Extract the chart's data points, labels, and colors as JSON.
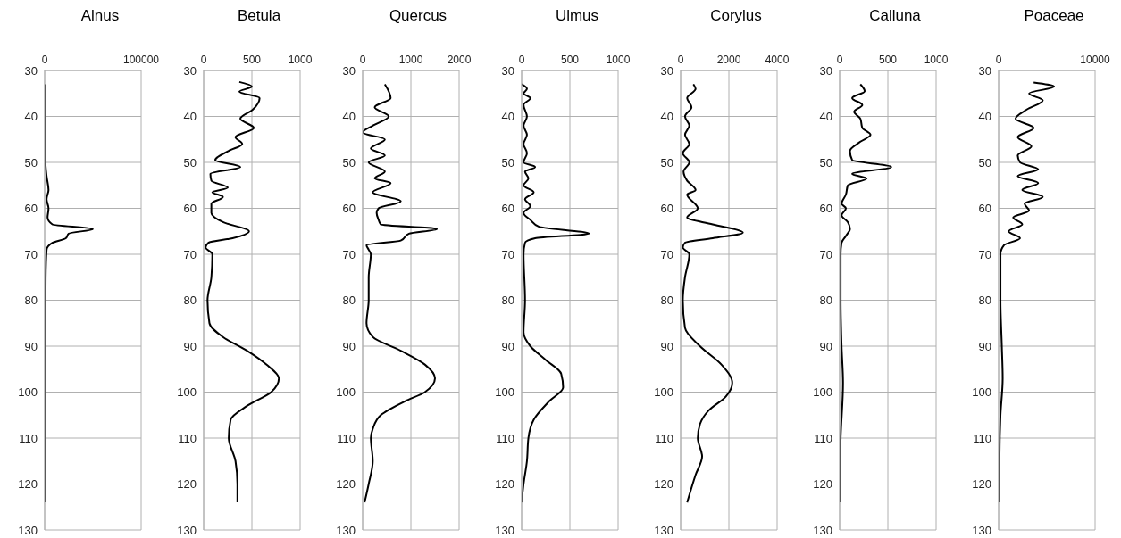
{
  "chart_data": [
    {
      "type": "line",
      "title": "Alnus",
      "color": "#000000",
      "xlim": [
        0,
        100000
      ],
      "xticks": [
        0,
        100000
      ],
      "ylim": [
        130,
        30
      ],
      "yticks": [
        30,
        40,
        50,
        60,
        70,
        80,
        90,
        100,
        110,
        120,
        130
      ],
      "grid": true,
      "x": [
        0,
        500,
        800,
        2000,
        4000,
        2000,
        4000,
        3000,
        8000,
        50000,
        25000,
        22000,
        8000,
        2000,
        1000,
        500,
        300,
        0
      ],
      "values": [
        33,
        40,
        50,
        53,
        56,
        58,
        60,
        62,
        63.5,
        64.5,
        65.5,
        66.5,
        67.5,
        69,
        75,
        90,
        110,
        124
      ]
    },
    {
      "type": "line",
      "title": "Betula",
      "color": "#000000",
      "xlim": [
        0,
        1000
      ],
      "xticks": [
        0,
        500,
        1000
      ],
      "ylim": [
        130,
        30
      ],
      "yticks": [
        30,
        40,
        50,
        60,
        70,
        80,
        90,
        100,
        110,
        120,
        130
      ],
      "grid": true,
      "x": [
        370,
        500,
        370,
        580,
        510,
        380,
        520,
        330,
        400,
        260,
        120,
        380,
        70,
        80,
        250,
        90,
        200,
        80,
        80,
        200,
        470,
        300,
        50,
        20,
        90,
        80,
        40,
        60,
        200,
        450,
        650,
        780,
        700,
        450,
        280,
        260,
        330,
        350,
        350
      ],
      "values": [
        32.5,
        33.5,
        34.6,
        36,
        38.5,
        40.5,
        42.5,
        44.5,
        46,
        47.5,
        49.5,
        51,
        52.5,
        54,
        55.5,
        56.5,
        57.5,
        59,
        61,
        63,
        65,
        66.5,
        67.5,
        68.5,
        70,
        75,
        80,
        85,
        88,
        91,
        94,
        97,
        100,
        103,
        106,
        110,
        115,
        120,
        124
      ]
    },
    {
      "type": "line",
      "title": "Quercus",
      "color": "#000000",
      "xlim": [
        0,
        2000
      ],
      "xticks": [
        0,
        1000,
        2000
      ],
      "ylim": [
        130,
        30
      ],
      "yticks": [
        30,
        40,
        50,
        60,
        70,
        80,
        90,
        100,
        110,
        120,
        130
      ],
      "grid": true,
      "x": [
        460,
        580,
        250,
        540,
        210,
        0,
        460,
        170,
        460,
        125,
        460,
        250,
        580,
        210,
        790,
        330,
        290,
        330,
        375,
        1540,
        960,
        790,
        80,
        125,
        170,
        125,
        125,
        80,
        210,
        790,
        1290,
        1500,
        1290,
        875,
        375,
        210,
        170,
        210,
        125,
        40
      ],
      "values": [
        33,
        36,
        38,
        40,
        42,
        43.5,
        45,
        47,
        48.5,
        50,
        52,
        53.5,
        54.5,
        56.5,
        58.5,
        60,
        61,
        62.5,
        63.5,
        64.5,
        65.5,
        67,
        68,
        69,
        70,
        75,
        80,
        85,
        88,
        91,
        94,
        97,
        100,
        102,
        105,
        108,
        110,
        115,
        120,
        124
      ]
    },
    {
      "type": "line",
      "title": "Ulmus",
      "color": "#000000",
      "xlim": [
        0,
        1000
      ],
      "xticks": [
        0,
        500,
        1000
      ],
      "ylim": [
        130,
        30
      ],
      "yticks": [
        30,
        40,
        50,
        60,
        70,
        80,
        90,
        100,
        110,
        120,
        130
      ],
      "grid": true,
      "x": [
        0,
        55,
        20,
        90,
        20,
        55,
        20,
        55,
        20,
        55,
        20,
        140,
        35,
        70,
        20,
        125,
        35,
        90,
        20,
        90,
        180,
        700,
        140,
        35,
        20,
        35,
        20,
        90,
        250,
        410,
        430,
        285,
        125,
        70,
        55,
        20,
        0
      ],
      "values": [
        33,
        34,
        35,
        36,
        37.5,
        40,
        42,
        44,
        46,
        48,
        50,
        51,
        52,
        53.5,
        55,
        56.5,
        58,
        59.5,
        61,
        62.5,
        64,
        65.5,
        66.5,
        67.5,
        70,
        80,
        87,
        90,
        93,
        96,
        99,
        102,
        106,
        110,
        115,
        120,
        124
      ]
    },
    {
      "type": "line",
      "title": "Corylus",
      "color": "#000000",
      "xlim": [
        0,
        4000
      ],
      "xticks": [
        0,
        2000,
        4000
      ],
      "ylim": [
        130,
        30
      ],
      "yticks": [
        30,
        40,
        50,
        60,
        70,
        80,
        90,
        100,
        110,
        120,
        130
      ],
      "grid": true,
      "x": [
        530,
        620,
        270,
        450,
        180,
        360,
        180,
        360,
        90,
        360,
        120,
        270,
        620,
        270,
        710,
        270,
        1330,
        2580,
        1330,
        180,
        90,
        360,
        180,
        90,
        180,
        800,
        1690,
        2140,
        1870,
        1160,
        800,
        710,
        890,
        620,
        270
      ],
      "values": [
        33,
        34,
        36,
        38,
        40,
        42,
        44,
        46,
        48,
        50,
        52,
        54,
        56,
        57,
        60,
        62,
        63.5,
        65.3,
        66.5,
        67.5,
        68.5,
        70,
        75,
        80,
        86,
        90,
        94,
        98,
        101,
        104,
        107,
        110,
        114,
        118,
        124
      ]
    },
    {
      "type": "line",
      "title": "Calluna",
      "color": "#000000",
      "xlim": [
        0,
        1000
      ],
      "xticks": [
        0,
        500,
        1000
      ],
      "ylim": [
        130,
        30
      ],
      "yticks": [
        30,
        40,
        50,
        60,
        70,
        80,
        90,
        100,
        110,
        120,
        130
      ],
      "grid": true,
      "x": [
        215,
        260,
        130,
        235,
        150,
        215,
        235,
        320,
        215,
        107,
        130,
        535,
        130,
        280,
        85,
        65,
        20,
        65,
        20,
        85,
        107,
        65,
        20,
        10,
        10,
        20,
        35,
        10,
        0
      ],
      "values": [
        33,
        34.5,
        36,
        37.5,
        39,
        40.5,
        42.5,
        44,
        45.5,
        47.5,
        49.5,
        51,
        52.5,
        53.5,
        55,
        57,
        59,
        60,
        61.5,
        63,
        64.5,
        66,
        67.5,
        70,
        80,
        90,
        98,
        110,
        124
      ]
    },
    {
      "type": "line",
      "title": "Poaceae",
      "color": "#000000",
      "xlim": [
        0,
        10000
      ],
      "xticks": [
        0,
        10000
      ],
      "ylim": [
        130,
        30
      ],
      "yticks": [
        30,
        40,
        50,
        60,
        70,
        80,
        90,
        100,
        110,
        120,
        130
      ],
      "grid": true,
      "x": [
        3630,
        5760,
        3160,
        4580,
        2920,
        1750,
        3630,
        1980,
        3400,
        1980,
        2220,
        4100,
        1980,
        4100,
        2450,
        4580,
        2690,
        3160,
        1510,
        2450,
        1040,
        2220,
        570,
        190,
        190,
        330,
        420,
        190,
        90,
        90
      ],
      "values": [
        32.6,
        33.5,
        35,
        36.5,
        38.5,
        40.5,
        42.5,
        44.5,
        46.5,
        48.5,
        50,
        51.5,
        53,
        54.5,
        56,
        57.5,
        59,
        60.5,
        62,
        63.5,
        65,
        66.5,
        68,
        70,
        80,
        90,
        97,
        105,
        115,
        124
      ]
    }
  ]
}
